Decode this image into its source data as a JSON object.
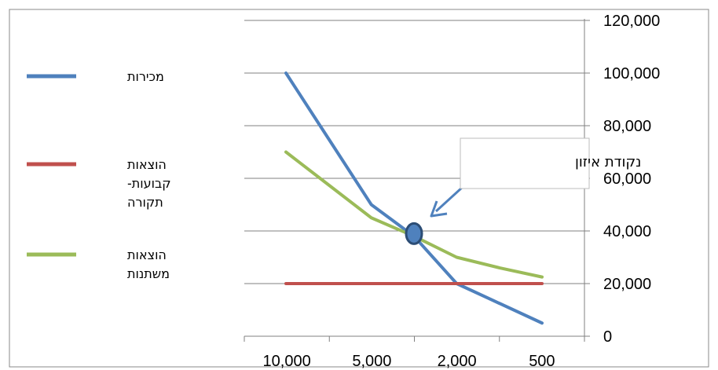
{
  "chart_data": {
    "type": "line",
    "categories": [
      "10,000",
      "",
      "5,000",
      "",
      "2,000",
      "",
      "500"
    ],
    "x_tick_labels": [
      "10,000",
      "5,000",
      "2,000",
      "500"
    ],
    "y_ticks": [
      "0",
      "20,000",
      "40,000",
      "60,000",
      "80,000",
      "100,000",
      "120,000"
    ],
    "ylim": [
      0,
      120000
    ],
    "grid": true,
    "y_axis_position": "right",
    "legend_position": "left",
    "series": [
      {
        "name": "מכירות",
        "color": "#4F81BD",
        "values": [
          100000,
          75000,
          50000,
          38000,
          20000,
          12500,
          5000
        ]
      },
      {
        "name": "הוצאות קבועות-תקורה",
        "color": "#C0504D",
        "values": [
          20000,
          20000,
          20000,
          20000,
          20000,
          20000,
          20000
        ]
      },
      {
        "name": "הוצאות משתנות",
        "color": "#9BBB59",
        "values": [
          70000,
          57500,
          45000,
          38000,
          30000,
          26000,
          22500
        ]
      }
    ],
    "legend": [
      {
        "lines": [
          "מכירות"
        ],
        "color": "#4F81BD"
      },
      {
        "lines": [
          "הוצאות",
          "קבועות-",
          "תקורה"
        ],
        "color": "#C0504D"
      },
      {
        "lines": [
          "הוצאות",
          "משתנות"
        ],
        "color": "#9BBB59"
      }
    ],
    "annotation": {
      "text": "נקודת איזון",
      "x_index": 3,
      "y": 39000,
      "marker_color": "#4F81BD",
      "arrow_color": "#4F81BD"
    }
  }
}
